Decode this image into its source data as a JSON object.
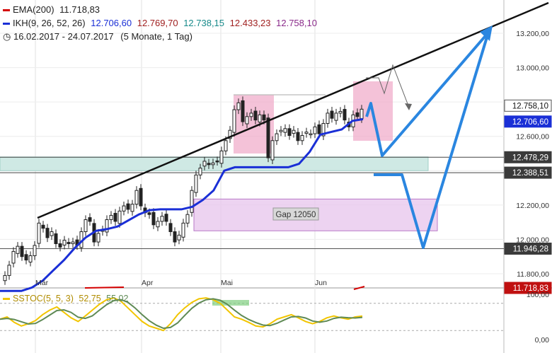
{
  "legend": {
    "ema_label": "EMA(200)",
    "ema_value": "11.718,83",
    "ikh_label": "IKH(9, 26, 52, 26)",
    "ikh_values": [
      "12.706,60",
      "12.769,70",
      "12.738,15",
      "12.433,23",
      "12.758,10"
    ],
    "period": "16.02.2017 - 24.07.2017",
    "period_note": "(5 Monate, 1 Tag)"
  },
  "oscillator": {
    "label": "SSTOC(5, 5, 3)",
    "values": [
      "52,75",
      "55,02"
    ],
    "ticks": [
      "100,00",
      "0,00"
    ]
  },
  "colors": {
    "ikh": "#1a2fd6",
    "ema": "#d40000",
    "projection": "#2a86e0",
    "pink_zone": "#f0a8c8",
    "gap_zone": "#e8c8ee",
    "support_zone": "#cfe9e4",
    "stoch_k": "#f2c500",
    "stoch_d": "#5f8a55"
  },
  "chart_data": {
    "type": "line",
    "title": "",
    "xlabel": "",
    "ylabel": "",
    "ylim": [
      11700,
      13380
    ],
    "x_ticks": [
      "Mär",
      "Apr",
      "Mai",
      "Jun"
    ],
    "y_ticks": [
      "11.800,00",
      "12.000,00",
      "12.200,00",
      "12.400,00",
      "12.600,00",
      "12.800,00",
      "13.000,00",
      "13.200,00"
    ],
    "price_labels": [
      {
        "text": "12.758,10",
        "value": 12758.1,
        "style": "plain"
      },
      {
        "text": "12.706,60",
        "value": 12706.6,
        "style": "blue"
      },
      {
        "text": "12.478,29",
        "value": 12478.29,
        "style": "dark"
      },
      {
        "text": "12.388,51",
        "value": 12388.51,
        "style": "dark"
      },
      {
        "text": "11.946,28",
        "value": 11946.28,
        "style": "dark"
      },
      {
        "text": "11.718,83",
        "value": 11718.83,
        "style": "red"
      }
    ],
    "zones": [
      {
        "name": "support",
        "y": [
          12400,
          12480
        ]
      },
      {
        "name": "Gap 12050",
        "y": [
          12050,
          12235
        ]
      }
    ],
    "series": [
      {
        "name": "IKH(9, 26, 52, 26)",
        "values": [
          11700,
          11700,
          11700,
          11720,
          11760,
          11820,
          11880,
          11950,
          12010,
          12050,
          12060,
          12075,
          12110,
          12145,
          12170,
          12175,
          12175,
          12175,
          12190,
          12230,
          12285,
          12400,
          12420,
          12420,
          12420,
          12420,
          12420,
          12420,
          12440,
          12510,
          12610,
          12625,
          12640,
          12690,
          12700
        ]
      }
    ],
    "annotations": [
      {
        "type": "text",
        "text": "Gap 12050"
      }
    ]
  }
}
